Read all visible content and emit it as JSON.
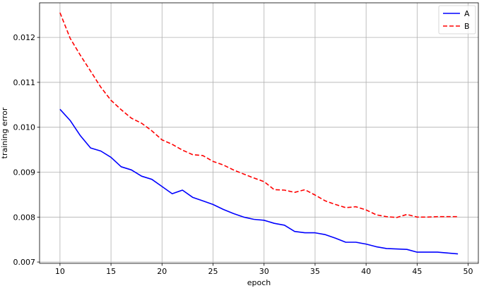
{
  "chart_data": {
    "type": "line",
    "title": "",
    "xlabel": "epoch",
    "ylabel": "training error",
    "xlim": [
      8,
      51
    ],
    "ylim": [
      0.00697,
      0.01277
    ],
    "xticks": [
      10,
      15,
      20,
      25,
      30,
      35,
      40,
      45,
      50
    ],
    "yticks": [
      0.007,
      0.008,
      0.009,
      0.01,
      0.011,
      0.012
    ],
    "ytick_labels": [
      "0.007",
      "0.008",
      "0.009",
      "0.010",
      "0.011",
      "0.012"
    ],
    "grid": true,
    "legend": "top-right",
    "x": [
      10,
      11,
      12,
      13,
      14,
      15,
      16,
      17,
      18,
      19,
      20,
      21,
      22,
      23,
      24,
      25,
      26,
      27,
      28,
      29,
      30,
      31,
      32,
      33,
      34,
      35,
      36,
      37,
      38,
      39,
      40,
      41,
      42,
      43,
      44,
      45,
      46,
      47,
      48,
      49
    ],
    "series": [
      {
        "name": "A",
        "color": "#0000ff",
        "style": "solid",
        "values": [
          0.0104,
          0.01015,
          0.00981,
          0.00954,
          0.00947,
          0.00933,
          0.00912,
          0.00905,
          0.00891,
          0.00884,
          0.00868,
          0.00852,
          0.0086,
          0.00844,
          0.00836,
          0.00828,
          0.00817,
          0.00808,
          0.008,
          0.00795,
          0.00793,
          0.00786,
          0.00782,
          0.00768,
          0.00765,
          0.00765,
          0.00761,
          0.00753,
          0.00744,
          0.00744,
          0.0074,
          0.00734,
          0.0073,
          0.00729,
          0.00728,
          0.00722,
          0.00722,
          0.00722,
          0.0072,
          0.00718
        ]
      },
      {
        "name": "B",
        "color": "#ff0000",
        "style": "dashed",
        "values": [
          0.01255,
          0.01198,
          0.0116,
          0.01125,
          0.01089,
          0.0106,
          0.01039,
          0.0102,
          0.01009,
          0.00992,
          0.00972,
          0.00962,
          0.00949,
          0.00939,
          0.00937,
          0.00924,
          0.00916,
          0.00905,
          0.00896,
          0.00887,
          0.00879,
          0.00861,
          0.0086,
          0.00855,
          0.00861,
          0.00849,
          0.00836,
          0.00828,
          0.00821,
          0.00823,
          0.00816,
          0.00805,
          0.00801,
          0.00799,
          0.00806,
          0.008,
          0.008,
          0.00801,
          0.00801,
          0.00801
        ]
      }
    ]
  }
}
